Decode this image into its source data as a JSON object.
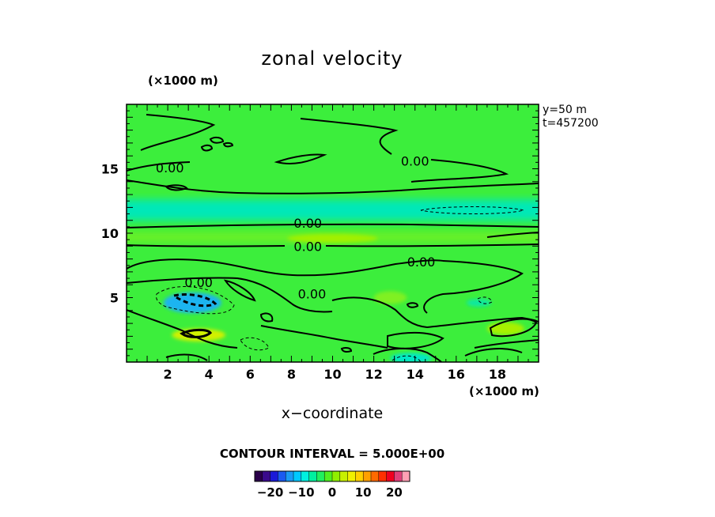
{
  "chart_data": {
    "type": "heatmap",
    "title": "zonal velocity",
    "xlabel": "x−coordinate",
    "x_unit": "(×1000 m)",
    "y_unit": "(×1000 m)",
    "xlim": [
      0,
      20
    ],
    "ylim": [
      0,
      20
    ],
    "x_ticks": [
      2,
      4,
      6,
      8,
      10,
      12,
      14,
      16,
      18
    ],
    "y_ticks": [
      5,
      10,
      15
    ],
    "meta": [
      "y=50  m",
      "t=457200"
    ],
    "contour_interval_text": "CONTOUR INTERVAL = 5.000E+00",
    "contour_labels": [
      {
        "text": "0.00",
        "x": 2.1,
        "y": 15.1
      },
      {
        "text": "0.00",
        "x": 14.0,
        "y": 15.6
      },
      {
        "text": "0.00",
        "x": 8.8,
        "y": 10.8
      },
      {
        "text": "0.00",
        "x": 8.8,
        "y": 9.0
      },
      {
        "text": "0.00",
        "x": 14.3,
        "y": 7.8
      },
      {
        "text": "0.00",
        "x": 3.5,
        "y": 6.2
      },
      {
        "text": "0.00",
        "x": 9.0,
        "y": 5.3
      }
    ],
    "colorbar": {
      "ticks": [
        -20,
        -10,
        0,
        10,
        20
      ],
      "tick_labels": [
        "−20",
        "−10",
        "0",
        "10",
        "20"
      ],
      "range": [
        -25,
        25
      ],
      "colors": [
        "#2a004a",
        "#3a0a8c",
        "#1a1ad8",
        "#1a5af0",
        "#1a9af5",
        "#00c8ff",
        "#00f0e0",
        "#00f0a0",
        "#20f060",
        "#50f020",
        "#90f000",
        "#c8f000",
        "#f0f000",
        "#ffd000",
        "#ffa000",
        "#ff6a00",
        "#ff3000",
        "#f00020",
        "#e0407a",
        "#ffa0b4"
      ]
    },
    "field": {
      "background": "#3cee3c",
      "features": [
        {
          "type": "band",
          "y": 11.8,
          "thickness": 1.6,
          "value": -5,
          "color": "#00e8b8"
        },
        {
          "type": "band",
          "y": 9.7,
          "thickness": 0.8,
          "value": 3,
          "color": "#6cf028"
        },
        {
          "type": "blob",
          "x": 3.2,
          "y": 4.6,
          "rx": 1.4,
          "ry": 0.8,
          "value": -12,
          "color": "#1ab4f0"
        },
        {
          "type": "blob",
          "x": 3.5,
          "y": 2.1,
          "rx": 1.3,
          "ry": 0.5,
          "value": 10,
          "color": "#d2f000"
        },
        {
          "type": "blob",
          "x": 12.8,
          "y": 5.0,
          "rx": 0.8,
          "ry": 0.5,
          "value": 3,
          "color": "#80f020"
        },
        {
          "type": "blob",
          "x": 18.4,
          "y": 2.6,
          "rx": 0.9,
          "ry": 0.5,
          "value": 6,
          "color": "#a8f000"
        },
        {
          "type": "blob",
          "x": 17.1,
          "y": 4.6,
          "rx": 0.6,
          "ry": 0.3,
          "value": -4,
          "color": "#10e8a0"
        },
        {
          "type": "blob",
          "x": 13.8,
          "y": 0.3,
          "rx": 1.0,
          "ry": 0.4,
          "value": -5,
          "color": "#00e8c8"
        },
        {
          "type": "blob",
          "x": 10.0,
          "y": 9.6,
          "rx": 2.2,
          "ry": 0.35,
          "value": 4,
          "color": "#a0f000"
        }
      ]
    }
  }
}
